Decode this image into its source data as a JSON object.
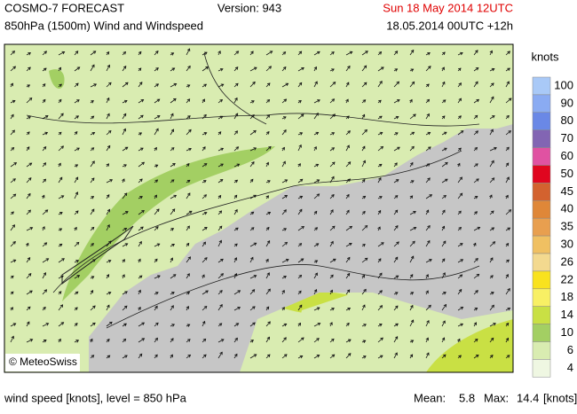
{
  "header": {
    "model": "COSMO-7 FORECAST",
    "field": "850hPa (1500m) Wind and Windspeed",
    "version": "Version: 943",
    "valid_time": "Sun 18 May 2014 12UTC",
    "run": "18.05.2014 00UTC +12h"
  },
  "map": {
    "copyright": "© MeteoSwiss"
  },
  "legend": {
    "unit": "knots",
    "items": [
      {
        "label": 100,
        "color": "#a9c9f7"
      },
      {
        "label": 90,
        "color": "#8aabf2"
      },
      {
        "label": 80,
        "color": "#6a88e6"
      },
      {
        "label": 70,
        "color": "#8265b3"
      },
      {
        "label": 60,
        "color": "#e052a2"
      },
      {
        "label": 50,
        "color": "#e0061f"
      },
      {
        "label": 45,
        "color": "#d3622f"
      },
      {
        "label": 40,
        "color": "#df8738"
      },
      {
        "label": 35,
        "color": "#e89f4f"
      },
      {
        "label": 30,
        "color": "#f0c062"
      },
      {
        "label": 26,
        "color": "#f3d98f"
      },
      {
        "label": 22,
        "color": "#f9e21e"
      },
      {
        "label": 18,
        "color": "#f8f064"
      },
      {
        "label": 14,
        "color": "#c9e044"
      },
      {
        "label": 10,
        "color": "#a3cf63"
      },
      {
        "label": 6,
        "color": "#d9ecb1"
      },
      {
        "label": 4,
        "color": "#eff7e2"
      }
    ]
  },
  "footer": {
    "description": "wind speed [knots], level = 850 hPa",
    "mean_label": "Mean:",
    "mean": 5.8,
    "max_label": "Max:",
    "max": 14.4,
    "unit": "[knots]"
  }
}
